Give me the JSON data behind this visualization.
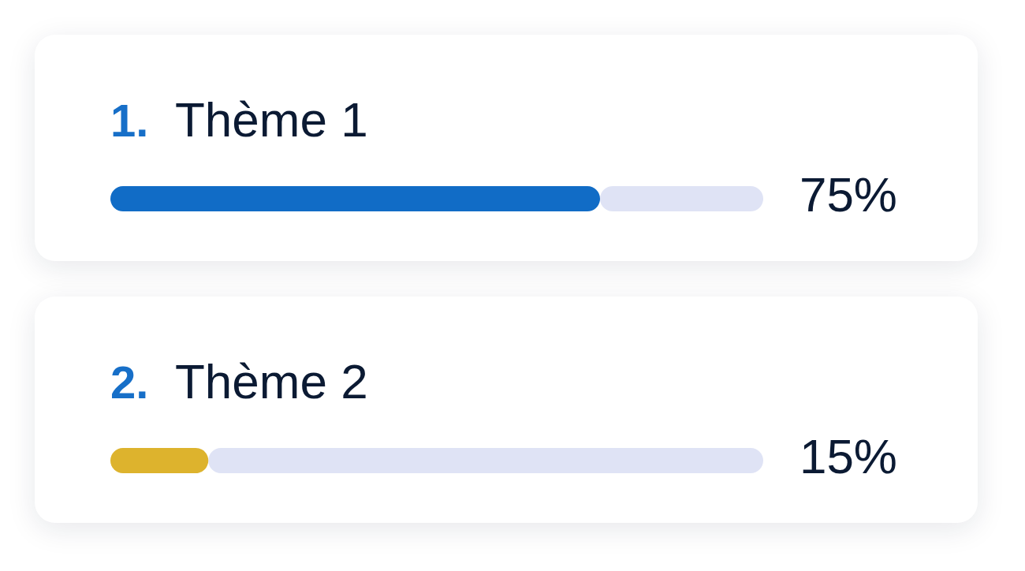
{
  "chart_data": {
    "type": "bar",
    "orientation": "horizontal",
    "stacked": true,
    "categories": [
      "Thème 1",
      "Thème 2"
    ],
    "series": [
      {
        "colors": [
          "#116cc6",
          "#ddb32d"
        ],
        "values": [
          75,
          15
        ],
        "value_labels": [
          "75%",
          "15%"
        ]
      },
      {
        "color": "#dfe3f5",
        "values": [
          25,
          85
        ]
      }
    ],
    "annotations": [
      "1.",
      "2."
    ],
    "tick_labels": "y"
  }
}
